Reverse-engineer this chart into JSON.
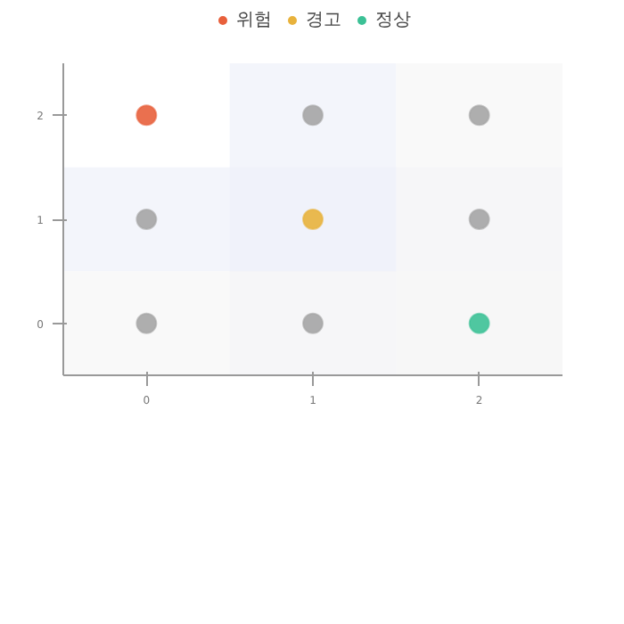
{
  "chart_data": {
    "type": "scatter",
    "xlim": [
      -0.5,
      2.5
    ],
    "ylim": [
      -0.5,
      2.5
    ],
    "xticks": [
      0,
      1,
      2
    ],
    "yticks": [
      0,
      1,
      2
    ],
    "legend": "top",
    "marker": "circle",
    "grid": false,
    "bands": [
      {
        "axis": "x",
        "from": 0.5,
        "to": 1.5,
        "color": "#eef1f9"
      },
      {
        "axis": "y",
        "from": 0.5,
        "to": 1.5,
        "color": "#eef1f9"
      },
      {
        "axis": "x",
        "from": 1.5,
        "to": 2.5,
        "color": "#f7f7f7"
      },
      {
        "axis": "y",
        "from": -0.5,
        "to": 0.5,
        "color": "#f7f7f7"
      }
    ],
    "series": [
      {
        "name": "위험",
        "color": "#e8603c",
        "x": [
          0
        ],
        "values": [
          2
        ]
      },
      {
        "name": "경고",
        "color": "#e8b23c",
        "x": [
          1
        ],
        "values": [
          1
        ]
      },
      {
        "name": "정상",
        "color": "#3cc196",
        "x": [
          2
        ],
        "values": [
          0
        ]
      },
      {
        "color": "#a5a5a5",
        "x": [
          1,
          2,
          0,
          2,
          0,
          1
        ],
        "values": [
          2,
          2,
          1,
          1,
          0,
          0
        ]
      }
    ]
  }
}
